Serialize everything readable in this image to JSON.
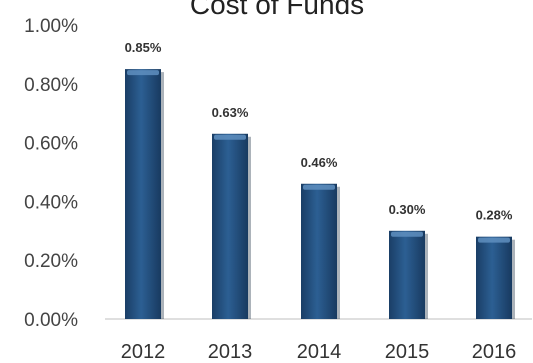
{
  "chart_data": {
    "type": "bar",
    "title": "Cost of Funds",
    "categories": [
      "2012",
      "2013",
      "2014",
      "2015",
      "2016"
    ],
    "values": [
      0.85,
      0.63,
      0.46,
      0.3,
      0.28
    ],
    "data_labels": [
      "0.85%",
      "0.63%",
      "0.46%",
      "0.30%",
      "0.28%"
    ],
    "y_ticks": [
      "0.00%",
      "0.20%",
      "0.40%",
      "0.60%",
      "0.80%",
      "1.00%"
    ],
    "y_tick_values": [
      0,
      0.2,
      0.4,
      0.6,
      0.8,
      1.0
    ],
    "ylim": [
      0,
      1.0
    ],
    "xlabel": "",
    "ylabel": "",
    "grid": false,
    "legend": "none",
    "colors": {
      "bar": "#23507f",
      "bar_highlight": "#5f8fc0",
      "bar_shadow": "#10243a",
      "axis": "#bfbfbf"
    }
  }
}
